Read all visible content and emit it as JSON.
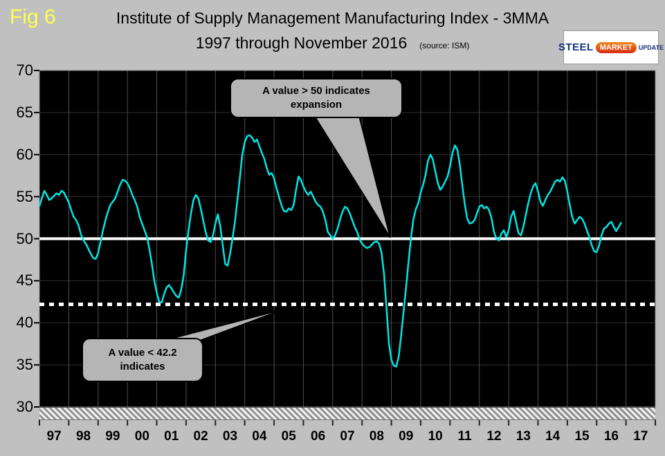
{
  "figure_label": "Fig 6",
  "title_line1": "Institute of Supply Management Manufacturing Index - 3MMA",
  "title_line2": "1997 through November 2016",
  "source_note": "(source: ISM)",
  "logo": {
    "steel": "STEEL",
    "market": "MARKET",
    "update": "UPDATE"
  },
  "callouts": {
    "expansion": {
      "line1": "A value > 50 indicates",
      "line2": "expansion"
    },
    "contraction": {
      "line1": "A value < 42.2",
      "line2": "indicates"
    }
  },
  "colors": {
    "page_bg": "#c0c0c0",
    "plot_bg": "#000000",
    "series_line": "#00e6e6",
    "reference_line": "#ffffff",
    "figure_label": "#ffff4d",
    "callout_bg": "#b5b5b5"
  },
  "chart_data": {
    "type": "line",
    "title": "Institute of Supply Management Manufacturing Index - 3MMA, 1997 through November 2016",
    "source": "ISM",
    "ylim": [
      30,
      70
    ],
    "yticks": [
      70,
      65,
      60,
      55,
      50,
      45,
      40,
      35,
      30
    ],
    "x_axis_year_labels": [
      "97",
      "98",
      "99",
      "00",
      "01",
      "02",
      "03",
      "04",
      "05",
      "06",
      "07",
      "08",
      "09",
      "10",
      "11",
      "12",
      "13",
      "14",
      "15",
      "16",
      "17"
    ],
    "x_span_years": [
      1997,
      2018
    ],
    "grid": "vertical-yearly",
    "legend": "none",
    "reference_lines": [
      {
        "value": 50,
        "style": "solid",
        "color": "#ffffff"
      },
      {
        "value": 42.2,
        "style": "dotted",
        "color": "#ffffff"
      }
    ],
    "series": [
      {
        "name": "ISM Manufacturing Index (3-month moving average)",
        "frequency": "monthly",
        "start_month": "1997-01",
        "end_month": "2016-11",
        "values": [
          53.9,
          54.8,
          55.7,
          55.2,
          54.6,
          54.8,
          55.1,
          55.4,
          55.2,
          55.7,
          55.5,
          54.9,
          54.3,
          53.4,
          52.6,
          52.2,
          51.6,
          50.5,
          49.8,
          49.4,
          48.8,
          48.2,
          47.7,
          47.6,
          48.3,
          49.6,
          51.0,
          52.2,
          53.2,
          54.0,
          54.4,
          54.8,
          55.6,
          56.4,
          57.0,
          56.9,
          56.6,
          56.0,
          55.2,
          54.6,
          53.8,
          52.6,
          51.8,
          51.0,
          50.2,
          48.8,
          47.0,
          45.0,
          43.6,
          42.5,
          42.4,
          43.4,
          44.2,
          44.5,
          44.1,
          43.6,
          43.2,
          43.0,
          43.9,
          45.6,
          48.6,
          51.0,
          53.0,
          54.6,
          55.2,
          54.8,
          53.6,
          52.2,
          50.8,
          49.8,
          49.6,
          50.4,
          51.8,
          52.9,
          51.5,
          49.2,
          47.0,
          46.8,
          48.2,
          50.0,
          52.0,
          54.6,
          57.2,
          60.0,
          61.5,
          62.2,
          62.3,
          62.0,
          61.5,
          61.8,
          61.0,
          60.2,
          59.5,
          58.4,
          57.6,
          57.8,
          57.2,
          56.0,
          55.0,
          54.0,
          53.3,
          53.2,
          53.6,
          53.4,
          54.0,
          55.8,
          57.4,
          57.0,
          56.2,
          55.6,
          55.2,
          55.6,
          55.0,
          54.4,
          54.0,
          53.8,
          53.2,
          52.2,
          50.8,
          50.4,
          50.0,
          50.4,
          51.2,
          52.3,
          53.2,
          53.8,
          53.6,
          53.0,
          52.2,
          51.4,
          50.8,
          49.9,
          49.4,
          49.1,
          48.9,
          49.0,
          49.3,
          49.6,
          49.7,
          49.4,
          48.3,
          45.8,
          41.8,
          37.6,
          35.6,
          34.9,
          34.8,
          36.0,
          38.5,
          41.3,
          44.2,
          47.2,
          50.0,
          52.3,
          53.5,
          54.2,
          55.5,
          56.4,
          57.6,
          59.3,
          60.0,
          59.4,
          58.0,
          56.6,
          55.8,
          56.2,
          56.8,
          57.4,
          58.6,
          60.2,
          61.1,
          60.6,
          58.8,
          56.4,
          54.2,
          52.4,
          51.8,
          51.9,
          52.2,
          53.0,
          53.8,
          54.0,
          53.6,
          53.8,
          53.4,
          52.4,
          50.8,
          50.0,
          49.8,
          50.6,
          51.0,
          50.2,
          51.0,
          52.6,
          53.3,
          52.0,
          50.7,
          50.4,
          51.4,
          52.8,
          54.2,
          55.4,
          56.2,
          56.6,
          55.6,
          54.4,
          53.9,
          54.6,
          55.2,
          55.6,
          56.2,
          56.8,
          57.0,
          56.8,
          57.3,
          56.9,
          55.6,
          54.0,
          52.6,
          51.8,
          52.2,
          52.6,
          52.4,
          51.8,
          51.0,
          50.2,
          49.2,
          48.5,
          48.4,
          49.2,
          50.4,
          51.2,
          51.4,
          51.8,
          52.0,
          51.4,
          50.9,
          51.4,
          51.9
        ]
      }
    ]
  }
}
